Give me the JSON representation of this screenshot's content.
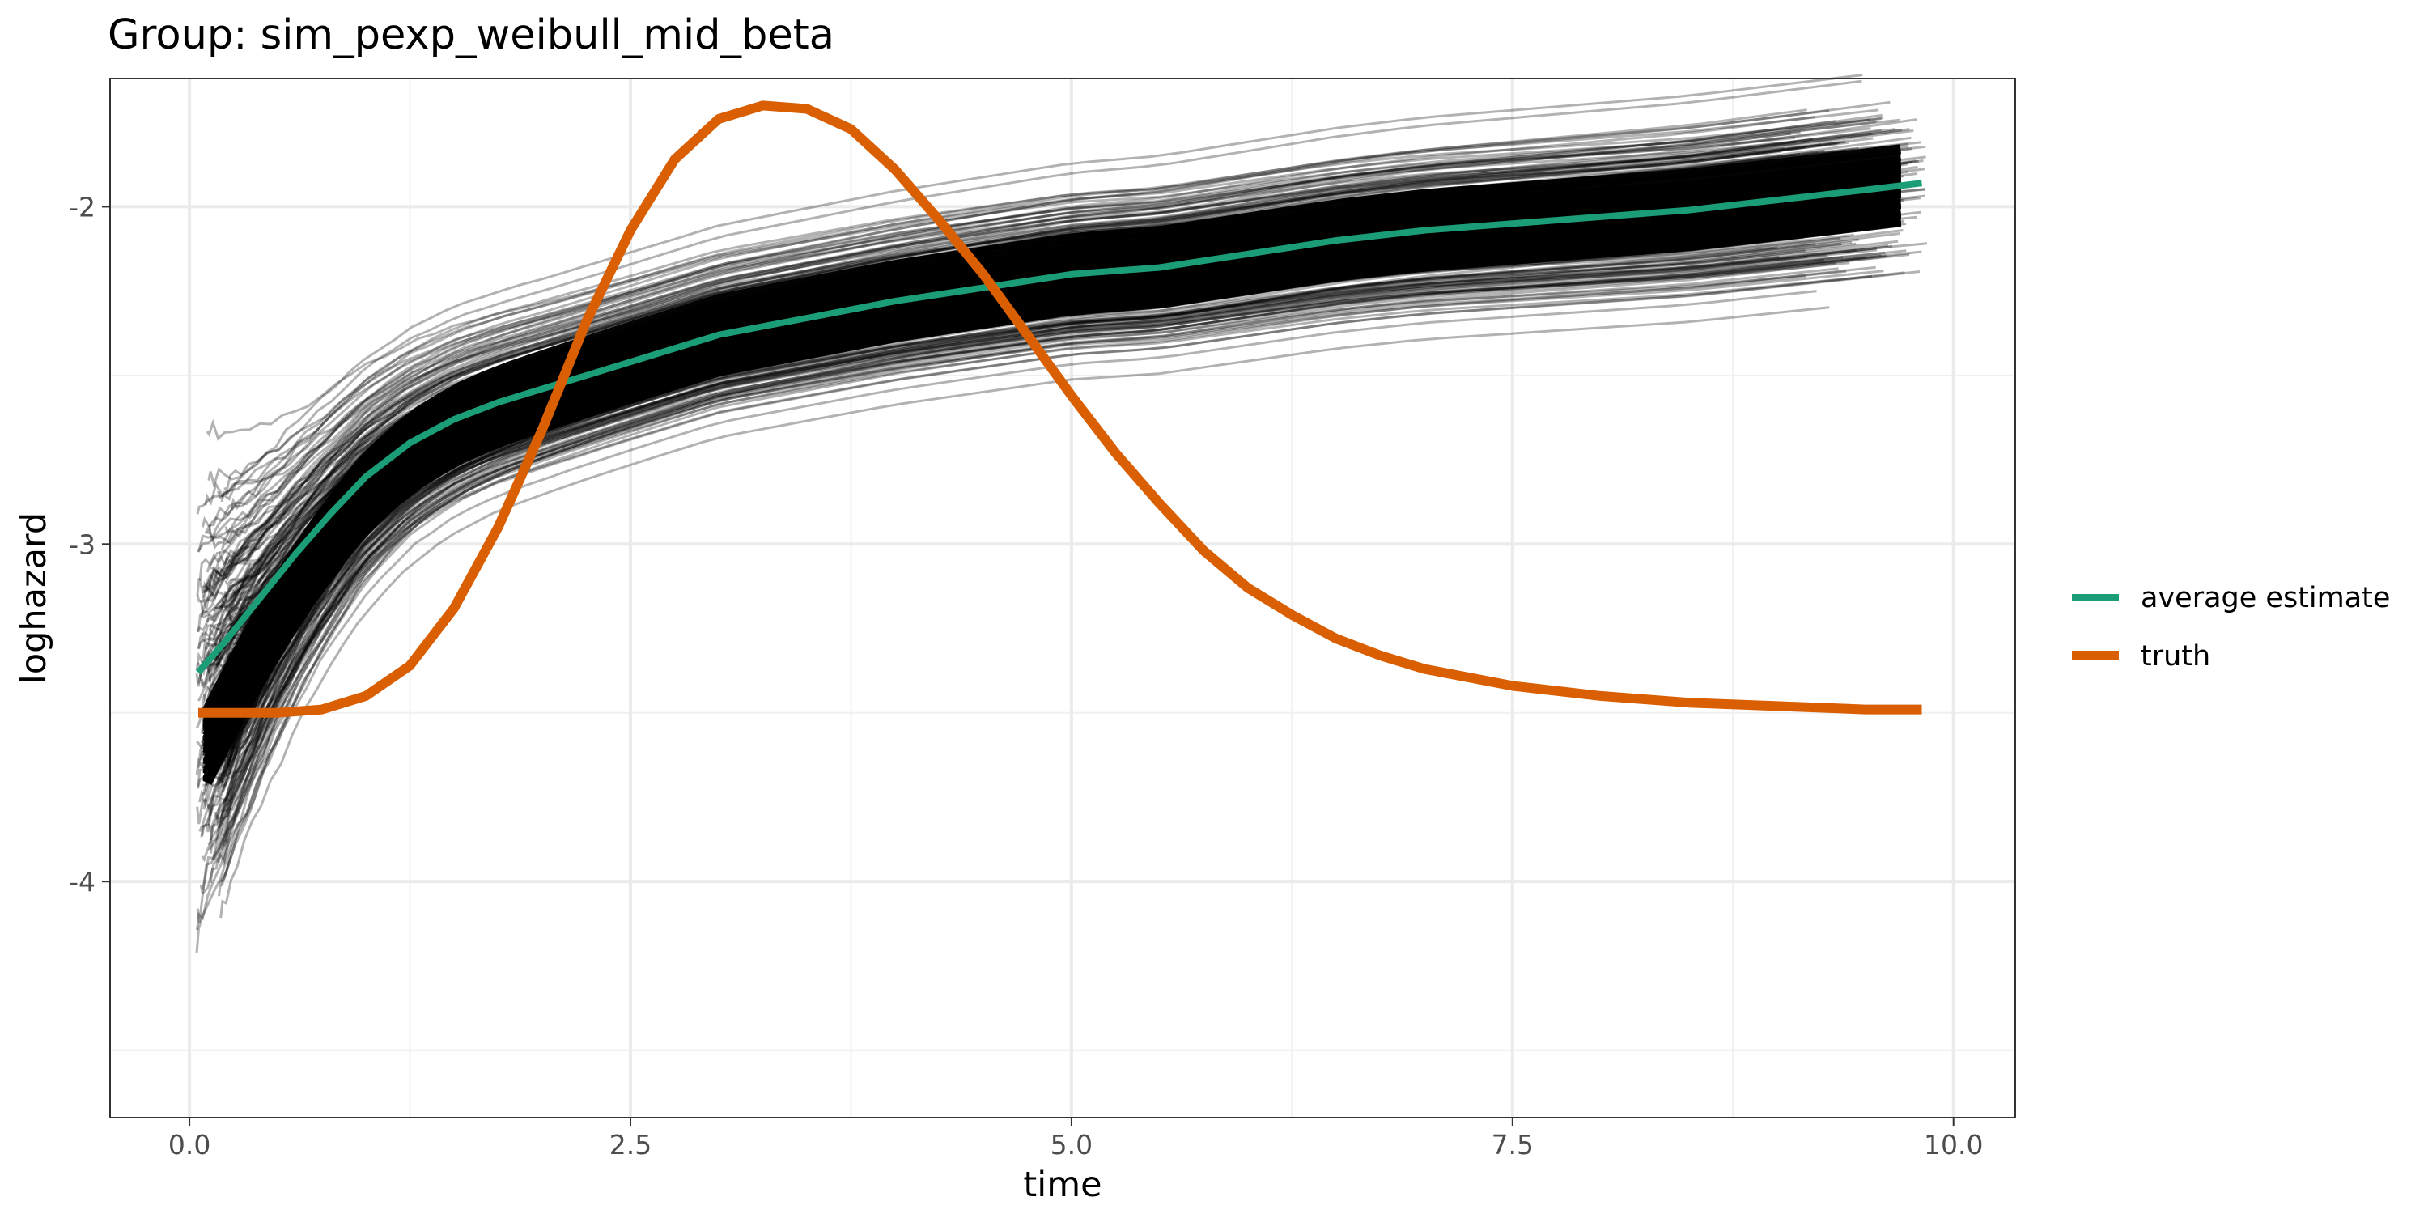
{
  "chart_data": {
    "type": "line",
    "title": "Group: sim_pexp_weibull_mid_beta",
    "xlabel": "time",
    "ylabel": "loghazard",
    "xlim": [
      -0.45,
      10.35
    ],
    "ylim": [
      -4.7,
      -1.62
    ],
    "x_ticks": [
      0.0,
      2.5,
      5.0,
      7.5,
      10.0
    ],
    "x_tick_labels": [
      "0.0",
      "2.5",
      "5.0",
      "7.5",
      "10.0"
    ],
    "x_minor_ticks": [
      1.25,
      3.75,
      6.25,
      8.75
    ],
    "y_ticks": [
      -4,
      -3,
      -2
    ],
    "y_tick_labels": [
      "-4",
      "-3",
      "-2"
    ],
    "y_minor_ticks": [
      -4.5,
      -3.5,
      -2.5
    ],
    "grid": true,
    "legend_position": "right",
    "replicate_color": "#000000",
    "series": [
      {
        "name": "average estimate",
        "color": "#1b9e77",
        "x": [
          0.05,
          0.2,
          0.4,
          0.6,
          0.8,
          1.0,
          1.25,
          1.5,
          1.75,
          2.0,
          2.25,
          2.5,
          2.75,
          3.0,
          3.5,
          4.0,
          4.5,
          5.0,
          5.5,
          6.0,
          6.5,
          7.0,
          7.5,
          8.0,
          8.5,
          9.0,
          9.5,
          9.82
        ],
        "y": [
          -3.38,
          -3.29,
          -3.16,
          -3.03,
          -2.91,
          -2.8,
          -2.7,
          -2.63,
          -2.58,
          -2.54,
          -2.5,
          -2.46,
          -2.42,
          -2.38,
          -2.33,
          -2.28,
          -2.24,
          -2.2,
          -2.18,
          -2.14,
          -2.1,
          -2.07,
          -2.05,
          -2.03,
          -2.01,
          -1.98,
          -1.95,
          -1.93
        ]
      },
      {
        "name": "truth",
        "color": "#d95f02",
        "x": [
          0.05,
          0.5,
          0.75,
          1.0,
          1.25,
          1.5,
          1.75,
          2.0,
          2.25,
          2.5,
          2.75,
          3.0,
          3.25,
          3.5,
          3.75,
          4.0,
          4.25,
          4.5,
          4.75,
          5.0,
          5.25,
          5.5,
          5.75,
          6.0,
          6.25,
          6.5,
          6.75,
          7.0,
          7.5,
          8.0,
          8.5,
          9.0,
          9.5,
          9.82
        ],
        "y": [
          -3.5,
          -3.5,
          -3.49,
          -3.45,
          -3.36,
          -3.19,
          -2.95,
          -2.66,
          -2.34,
          -2.07,
          -1.86,
          -1.74,
          -1.7,
          -1.71,
          -1.77,
          -1.89,
          -2.04,
          -2.2,
          -2.38,
          -2.56,
          -2.73,
          -2.88,
          -3.02,
          -3.13,
          -3.21,
          -3.28,
          -3.33,
          -3.37,
          -3.42,
          -3.45,
          -3.47,
          -3.48,
          -3.49,
          -3.49
        ]
      }
    ]
  }
}
